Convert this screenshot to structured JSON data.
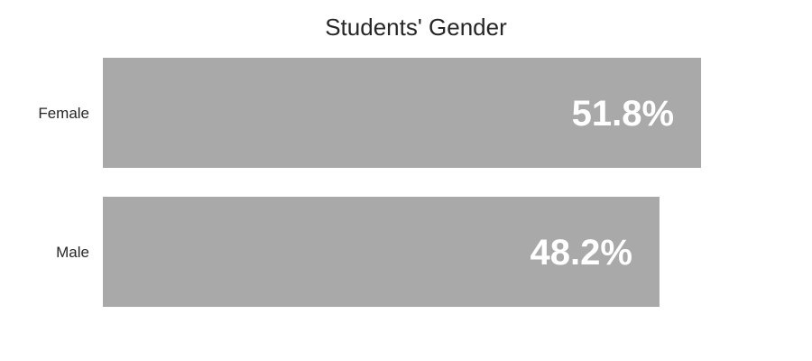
{
  "chart_data": {
    "type": "bar",
    "orientation": "horizontal",
    "title": "Students' Gender",
    "categories": [
      "Female",
      "Male"
    ],
    "values": [
      51.8,
      48.2
    ],
    "data_labels": [
      "51.8%",
      "48.2%"
    ],
    "bar_color": "#a9a9a9",
    "label_color": "#ffffff",
    "xlim": [
      0,
      60
    ],
    "grid": false,
    "xlabel": "",
    "ylabel": ""
  }
}
